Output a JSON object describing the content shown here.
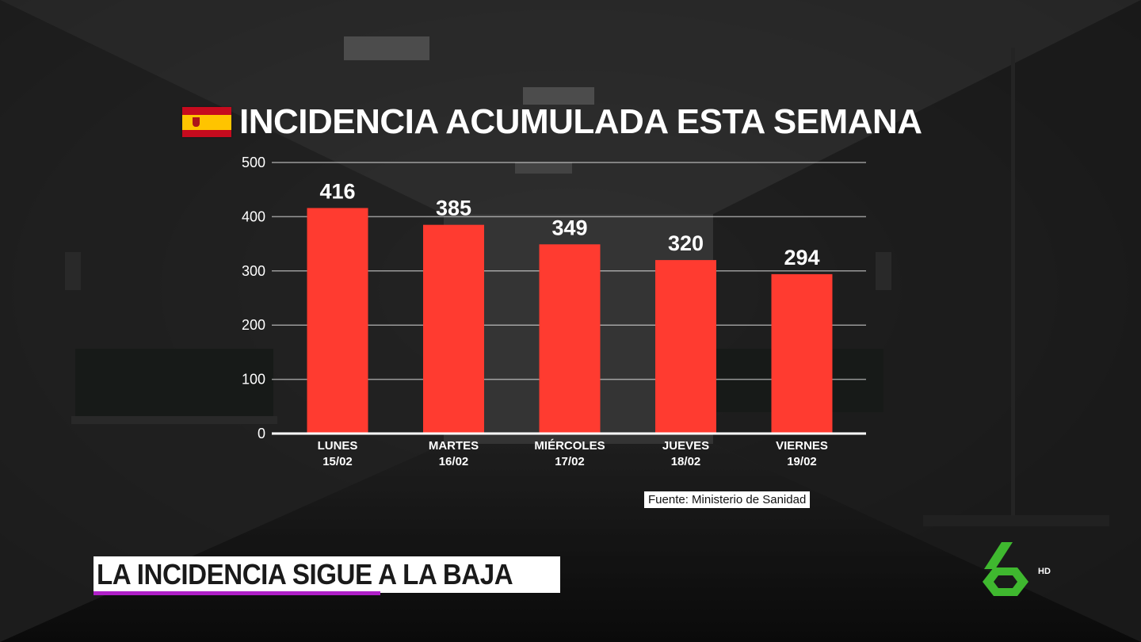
{
  "chart_data": {
    "type": "bar",
    "title": "INCIDENCIA ACUMULADA ESTA SEMANA",
    "categories": [
      {
        "day": "LUNES",
        "date": "15/02"
      },
      {
        "day": "MARTES",
        "date": "16/02"
      },
      {
        "day": "MIÉRCOLES",
        "date": "17/02"
      },
      {
        "day": "JUEVES",
        "date": "18/02"
      },
      {
        "day": "VIERNES",
        "date": "19/02"
      }
    ],
    "values": [
      416,
      385,
      349,
      320,
      294
    ],
    "ylim": [
      0,
      500
    ],
    "yticks": [
      0,
      100,
      200,
      300,
      400,
      500
    ],
    "grid": true,
    "bar_color": "#ff3b30"
  },
  "source": "Fuente: Ministerio de Sanidad",
  "headline": "LA INCIDENCIA SIGUE A LA BAJA",
  "channel": {
    "logo_icon": "lasexta-6-logo",
    "logo_color": "#3fb82f",
    "quality": "HD"
  },
  "flag_icon": "spain-flag-icon",
  "accent_color": "#b020c8"
}
